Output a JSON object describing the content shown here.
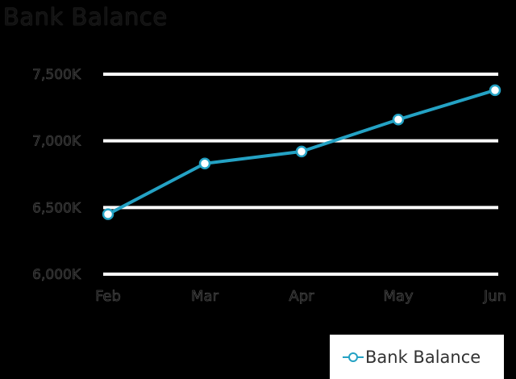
{
  "chart_data": {
    "type": "line",
    "title": "Bank Balance",
    "categories": [
      "Feb",
      "Mar",
      "Apr",
      "May",
      "Jun"
    ],
    "y_tick_labels": [
      "6,000K",
      "6,500K",
      "7,000K",
      "7,500K"
    ],
    "ylim": [
      6000,
      7500
    ],
    "series": [
      {
        "name": "Bank Balance",
        "values": [
          6450,
          6830,
          6920,
          7160,
          7380
        ]
      }
    ],
    "grid": true,
    "legend_position": "bottom-right",
    "colors": {
      "series": "#24a2c4",
      "grid": "#ffffff",
      "background": "#000000",
      "text": "#111111"
    }
  }
}
